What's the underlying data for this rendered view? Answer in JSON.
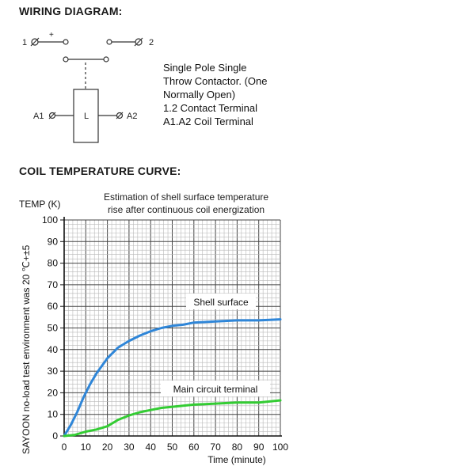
{
  "wiring": {
    "title": "WIRING DIAGRAM:",
    "terminal_1": "1",
    "terminal_2": "2",
    "plus": "+",
    "coil_left": "A1",
    "coil_right": "A2",
    "coil_label": "L",
    "description_lines": [
      "Single Pole Single",
      "Throw Contactor. (One",
      "Normally Open)",
      "1.2 Contact Terminal",
      "A1.A2 Coil Terminal"
    ]
  },
  "curve_section": {
    "title": "COIL TEMPERATURE CURVE:"
  },
  "chart_data": {
    "type": "line",
    "title": "Estimation of shell surface temperature rise after continuous coil energization",
    "title_lines": [
      "Estimation of shell surface temperature",
      "rise after continuous coil energization"
    ],
    "xlabel": "Time (minute)",
    "ylabel": "TEMP (K)",
    "side_note": "SAYOON no-load test environment was 20 ℃+±5",
    "xlim": [
      0,
      100
    ],
    "ylim": [
      0,
      100
    ],
    "x_ticks": [
      0,
      10,
      20,
      30,
      40,
      50,
      60,
      70,
      80,
      90,
      100
    ],
    "y_ticks": [
      0,
      10,
      20,
      30,
      40,
      50,
      60,
      70,
      80,
      90,
      100
    ],
    "grid": true,
    "series": [
      {
        "name": "Shell surface",
        "color": "#2f86d8",
        "x": [
          0,
          3,
          6,
          9,
          12,
          15,
          20,
          25,
          30,
          35,
          40,
          45,
          50,
          55,
          60,
          70,
          80,
          90,
          100
        ],
        "y": [
          0,
          5,
          11,
          18,
          24,
          29,
          36,
          41,
          44,
          46.5,
          48.5,
          50,
          51,
          51.5,
          52.5,
          53,
          53.5,
          53.5,
          54
        ]
      },
      {
        "name": "Main circuit terminal",
        "color": "#33cc33",
        "x": [
          0,
          5,
          10,
          15,
          20,
          25,
          30,
          35,
          40,
          45,
          50,
          55,
          60,
          70,
          80,
          90,
          100
        ],
        "y": [
          0,
          0.5,
          2,
          3,
          4.5,
          7.5,
          9.5,
          11,
          12,
          13,
          13.5,
          14,
          14.5,
          15,
          15.5,
          15.5,
          16.5
        ]
      }
    ]
  }
}
